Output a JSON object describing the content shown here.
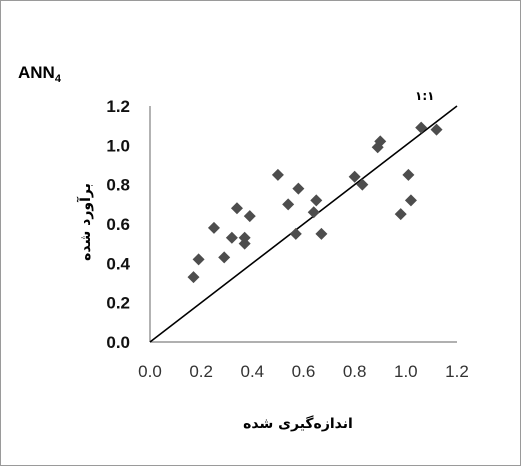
{
  "chart_data": {
    "type": "scatter",
    "title": "ANN",
    "title_subscript": "4",
    "xlabel": "اندازه‌گیری شده",
    "ylabel": "برآورد شده",
    "xlim": [
      0.0,
      1.2
    ],
    "ylim": [
      0.0,
      1.2
    ],
    "x_ticks": [
      "0.0",
      "0.2",
      "0.4",
      "0.6",
      "0.8",
      "1.0",
      "1.2"
    ],
    "y_ticks": [
      "0.0",
      "0.2",
      "0.4",
      "0.6",
      "0.8",
      "1.0",
      "1.2"
    ],
    "x_tick_values": [
      0.0,
      0.2,
      0.4,
      0.6,
      0.8,
      1.0,
      1.2
    ],
    "y_tick_values": [
      0.0,
      0.2,
      0.4,
      0.6,
      0.8,
      1.0,
      1.2
    ],
    "grid": false,
    "legend": "none",
    "reference_line": {
      "label": "۱:۱",
      "from": [
        0.0,
        0.0
      ],
      "to": [
        1.2,
        1.2
      ]
    },
    "marker": {
      "shape": "diamond",
      "color": "#4d4d4d"
    },
    "points": [
      {
        "x": 0.17,
        "y": 0.33
      },
      {
        "x": 0.19,
        "y": 0.42
      },
      {
        "x": 0.25,
        "y": 0.58
      },
      {
        "x": 0.29,
        "y": 0.43
      },
      {
        "x": 0.32,
        "y": 0.53
      },
      {
        "x": 0.34,
        "y": 0.68
      },
      {
        "x": 0.37,
        "y": 0.5
      },
      {
        "x": 0.37,
        "y": 0.53
      },
      {
        "x": 0.39,
        "y": 0.64
      },
      {
        "x": 0.5,
        "y": 0.85
      },
      {
        "x": 0.54,
        "y": 0.7
      },
      {
        "x": 0.57,
        "y": 0.55
      },
      {
        "x": 0.58,
        "y": 0.78
      },
      {
        "x": 0.64,
        "y": 0.66
      },
      {
        "x": 0.65,
        "y": 0.72
      },
      {
        "x": 0.67,
        "y": 0.55
      },
      {
        "x": 0.8,
        "y": 0.84
      },
      {
        "x": 0.83,
        "y": 0.8
      },
      {
        "x": 0.89,
        "y": 0.99
      },
      {
        "x": 0.9,
        "y": 1.02
      },
      {
        "x": 0.98,
        "y": 0.65
      },
      {
        "x": 1.01,
        "y": 0.85
      },
      {
        "x": 1.02,
        "y": 0.72
      },
      {
        "x": 1.06,
        "y": 1.09
      },
      {
        "x": 1.12,
        "y": 1.08
      }
    ]
  }
}
